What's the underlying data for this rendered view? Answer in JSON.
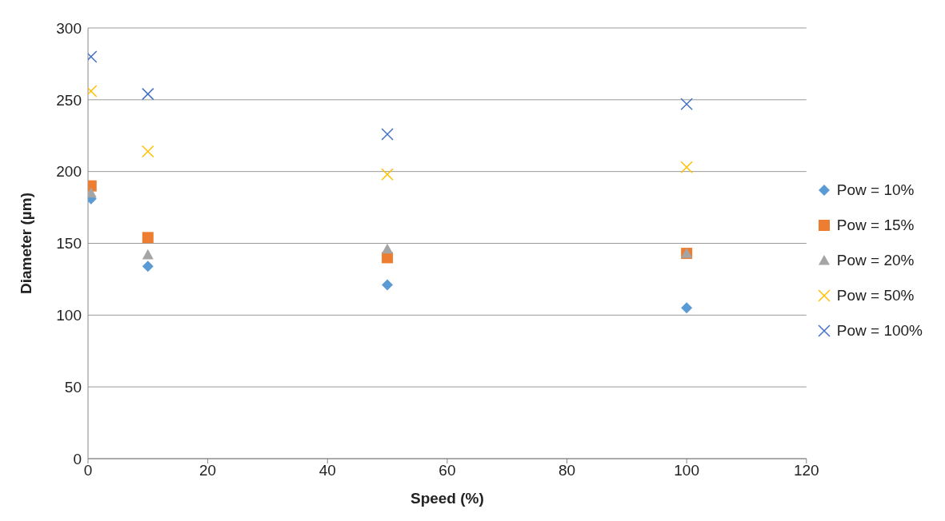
{
  "chart_data": {
    "type": "scatter",
    "xlabel": "Speed (%)",
    "ylabel": "Diameter (µm)",
    "xlim": [
      0,
      120
    ],
    "xticks": [
      0,
      20,
      40,
      60,
      80,
      100,
      120
    ],
    "ylim": [
      0,
      300
    ],
    "yticks": [
      0,
      50,
      100,
      150,
      200,
      250,
      300
    ],
    "grid": "y",
    "legend": "right",
    "series": [
      {
        "name": "Pow = 10%",
        "color": "#5b9bd5",
        "marker": "diamond",
        "x": [
          0.5,
          10,
          50,
          100
        ],
        "values": [
          181,
          134,
          121,
          105
        ]
      },
      {
        "name": "Pow = 15%",
        "color": "#ed7d31",
        "marker": "square",
        "x": [
          0.5,
          10,
          50,
          100
        ],
        "values": [
          190,
          154,
          140,
          143
        ]
      },
      {
        "name": "Pow = 20%",
        "color": "#a5a5a5",
        "marker": "triangle",
        "x": [
          0.5,
          10,
          50,
          100
        ],
        "values": [
          185,
          142,
          146,
          143
        ]
      },
      {
        "name": "Pow = 50%",
        "color": "#ffc000",
        "marker": "cross",
        "x": [
          0.5,
          10,
          50,
          100
        ],
        "values": [
          256,
          214,
          198,
          203
        ]
      },
      {
        "name": "Pow = 100%",
        "color": "#4472c4",
        "marker": "cross",
        "x": [
          0.5,
          10,
          50,
          100
        ],
        "values": [
          280,
          254,
          226,
          247
        ]
      }
    ]
  }
}
